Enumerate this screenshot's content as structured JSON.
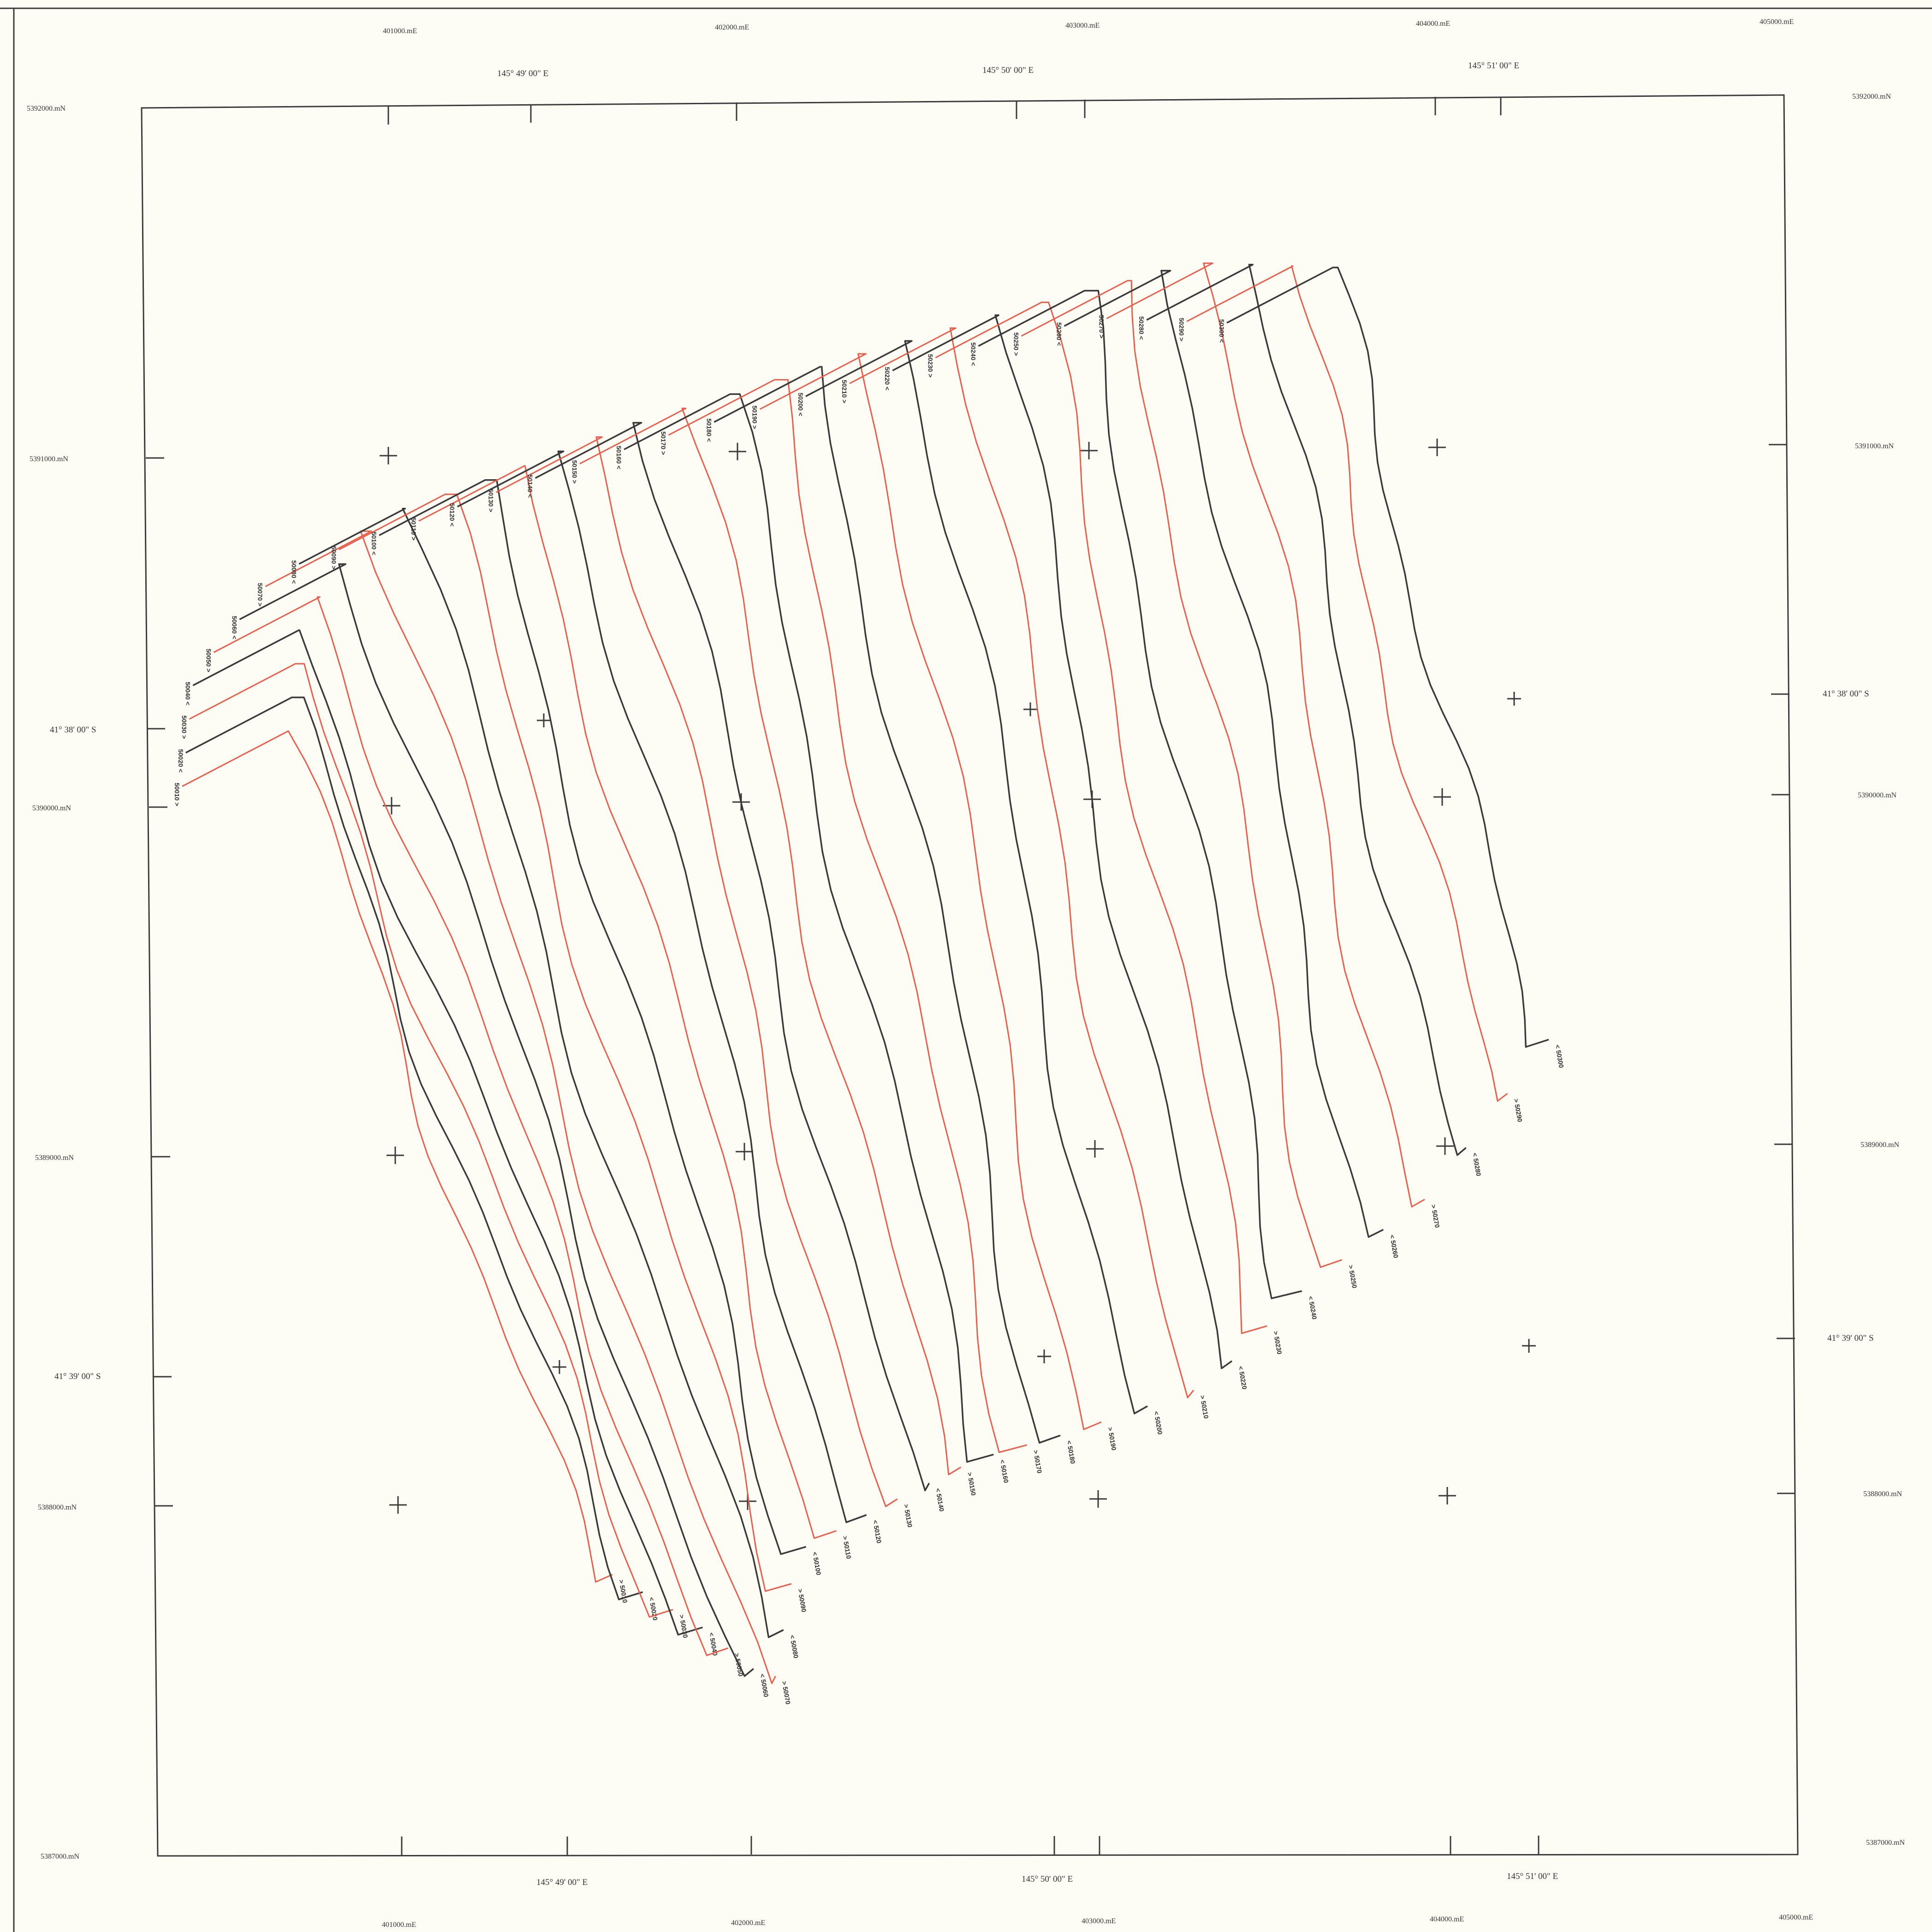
{
  "map": {
    "easting_labels": [
      "401000.mE",
      "402000.mE",
      "403000.mE",
      "404000.mE",
      "405000.mE"
    ],
    "northing_labels": [
      "5392000.mN",
      "5391000.mN",
      "5390000.mN",
      "5389000.mN",
      "5388000.mN",
      "5387000.mN"
    ],
    "longitude_labels": [
      "145°  49' 00\" E",
      "145°  50' 00\" E",
      "145°  51' 00\" E"
    ],
    "latitude_labels": [
      "41°  38' 00\" S",
      "41°  39' 00\" S"
    ],
    "colors": {
      "line_a": "#3a3a3a",
      "line_b": "#e8604c",
      "frame": "#3a3a3a",
      "paper": "#fdfdf6"
    }
  },
  "flight_lines": [
    {
      "id": "50010",
      "color": "red",
      "dir": ">"
    },
    {
      "id": "50020",
      "color": "black",
      "dir": "<"
    },
    {
      "id": "50030",
      "color": "red",
      "dir": ">"
    },
    {
      "id": "50040",
      "color": "black",
      "dir": "<"
    },
    {
      "id": "50050",
      "color": "red",
      "dir": ">"
    },
    {
      "id": "50060",
      "color": "black",
      "dir": "<"
    },
    {
      "id": "50070",
      "color": "red",
      "dir": ">"
    },
    {
      "id": "50080",
      "color": "black",
      "dir": "<"
    },
    {
      "id": "50090",
      "color": "red",
      "dir": ">"
    },
    {
      "id": "50100",
      "color": "black",
      "dir": "<"
    },
    {
      "id": "50110",
      "color": "red",
      "dir": ">"
    },
    {
      "id": "50120",
      "color": "black",
      "dir": "<"
    },
    {
      "id": "50130",
      "color": "red",
      "dir": ">"
    },
    {
      "id": "50140",
      "color": "black",
      "dir": "<"
    },
    {
      "id": "50150",
      "color": "red",
      "dir": ">"
    },
    {
      "id": "50160",
      "color": "black",
      "dir": "<"
    },
    {
      "id": "50170",
      "color": "red",
      "dir": ">"
    },
    {
      "id": "50180",
      "color": "black",
      "dir": "<"
    },
    {
      "id": "50190",
      "color": "red",
      "dir": ">"
    },
    {
      "id": "50200",
      "color": "black",
      "dir": "<"
    },
    {
      "id": "50210",
      "color": "red",
      "dir": ">"
    },
    {
      "id": "50220",
      "color": "black",
      "dir": "<"
    },
    {
      "id": "50230",
      "color": "red",
      "dir": ">"
    },
    {
      "id": "50240",
      "color": "black",
      "dir": "<"
    },
    {
      "id": "50250",
      "color": "red",
      "dir": ">"
    },
    {
      "id": "50260",
      "color": "black",
      "dir": "<"
    },
    {
      "id": "50270",
      "color": "red",
      "dir": ">"
    },
    {
      "id": "50280",
      "color": "black",
      "dir": "<"
    },
    {
      "id": "50290",
      "color": "red",
      "dir": ">"
    },
    {
      "id": "50300",
      "color": "black",
      "dir": "<"
    }
  ]
}
